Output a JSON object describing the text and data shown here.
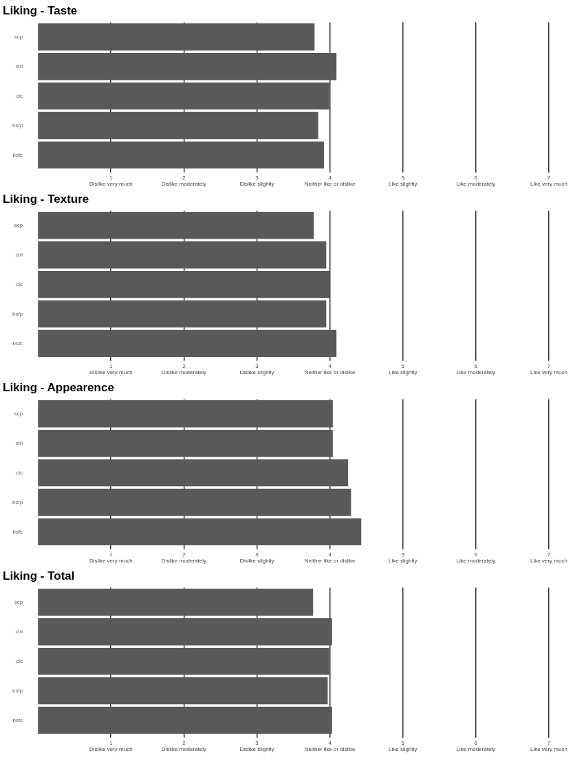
{
  "chart_data": [
    {
      "type": "bar",
      "title": "Liking - Taste",
      "orientation": "horizontal",
      "categories": [
        "scp",
        "ctrl",
        "clc",
        "bsfp",
        "bsfc"
      ],
      "values": [
        3.79,
        4.09,
        3.99,
        3.84,
        3.92
      ],
      "color": "#595959",
      "xlim": [
        0,
        7
      ],
      "xticks": [
        {
          "value": 1,
          "label": "1\nDislike very much"
        },
        {
          "value": 2,
          "label": "2\nDislike moderately"
        },
        {
          "value": 3,
          "label": "3\nDislike slightly"
        },
        {
          "value": 4,
          "label": "4\nNeither like or dislike"
        },
        {
          "value": 5,
          "label": "5\nLike slightly"
        },
        {
          "value": 6,
          "label": "6\nLike moderately"
        },
        {
          "value": 7,
          "label": "7\nLike very much"
        }
      ],
      "grid": "x",
      "legend": false
    },
    {
      "type": "bar",
      "title": "Liking - Texture",
      "orientation": "horizontal",
      "categories": [
        "scp",
        "ctrl",
        "clc",
        "bsfp",
        "bsfc"
      ],
      "values": [
        3.78,
        3.95,
        4.0,
        3.95,
        4.09
      ],
      "color": "#595959",
      "xlim": [
        0,
        7
      ],
      "xticks": [
        {
          "value": 1,
          "label": "1\nDislike very much"
        },
        {
          "value": 2,
          "label": "2\nDislike moderately"
        },
        {
          "value": 3,
          "label": "3\nDislike slightly"
        },
        {
          "value": 4,
          "label": "4\nNeither like or dislike"
        },
        {
          "value": 5,
          "label": "5\nLike slightly"
        },
        {
          "value": 6,
          "label": "6\nLike moderately"
        },
        {
          "value": 7,
          "label": "7\nLike very much"
        }
      ],
      "grid": "x",
      "legend": false
    },
    {
      "type": "bar",
      "title": "Liking - Appearence",
      "orientation": "horizontal",
      "categories": [
        "scp",
        "ctrl",
        "clc",
        "bsfp",
        "bsfc"
      ],
      "values": [
        4.04,
        4.04,
        4.25,
        4.29,
        4.43
      ],
      "color": "#595959",
      "xlim": [
        0,
        7
      ],
      "xticks": [
        {
          "value": 1,
          "label": "1\nDislike very much"
        },
        {
          "value": 2,
          "label": "2\nDislike moderately"
        },
        {
          "value": 3,
          "label": "3\nDislike slightly"
        },
        {
          "value": 4,
          "label": "4\nNeither like or dislike"
        },
        {
          "value": 5,
          "label": "5\nLike slightly"
        },
        {
          "value": 6,
          "label": "6\nLike moderately"
        },
        {
          "value": 7,
          "label": "7\nLike very much"
        }
      ],
      "grid": "x",
      "legend": false
    },
    {
      "type": "bar",
      "title": "Liking - Total",
      "orientation": "horizontal",
      "categories": [
        "scp",
        "ctrl",
        "clc",
        "bsfp",
        "bsfc"
      ],
      "values": [
        3.77,
        4.03,
        3.99,
        3.97,
        4.03
      ],
      "color": "#595959",
      "xlim": [
        0,
        7
      ],
      "xticks": [
        {
          "value": 1,
          "label": "1\nDislike very much"
        },
        {
          "value": 2,
          "label": "2\nDislike moderately"
        },
        {
          "value": 3,
          "label": "3\nDislike slightly"
        },
        {
          "value": 4,
          "label": "4\nNeither like or dislike"
        },
        {
          "value": 5,
          "label": "5\nLike slightly"
        },
        {
          "value": 6,
          "label": "6\nLike moderately"
        },
        {
          "value": 7,
          "label": "7\nLike very much"
        }
      ],
      "grid": "x",
      "legend": false
    }
  ]
}
